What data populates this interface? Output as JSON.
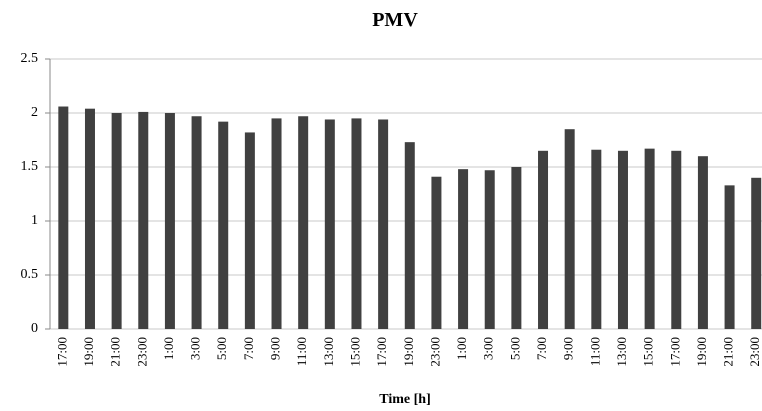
{
  "chart_data": {
    "type": "bar",
    "title": "PMV",
    "x_label": "Time [h]",
    "categories": [
      "17:00",
      "19:00",
      "21:00",
      "23:00",
      "1:00",
      "3:00",
      "5:00",
      "7:00",
      "9:00",
      "11:00",
      "13:00",
      "15:00",
      "17:00",
      "19:00",
      "23:00",
      "1:00",
      "3:00",
      "5:00",
      "7:00",
      "9:00",
      "11:00",
      "13:00",
      "15:00",
      "17:00",
      "19:00",
      "21:00",
      "23:00"
    ],
    "values": [
      2.06,
      2.04,
      2.0,
      2.01,
      2.0,
      1.97,
      1.92,
      1.82,
      1.95,
      1.97,
      1.94,
      1.95,
      1.94,
      1.73,
      1.41,
      1.48,
      1.47,
      1.5,
      1.65,
      1.85,
      1.66,
      1.65,
      1.67,
      1.65,
      1.6,
      1.33,
      1.4
    ],
    "color": "#404040",
    "ylim": [
      0,
      2.5
    ],
    "yticks": [
      0,
      0.5,
      1,
      1.5,
      2,
      2.5
    ],
    "grid": true
  }
}
